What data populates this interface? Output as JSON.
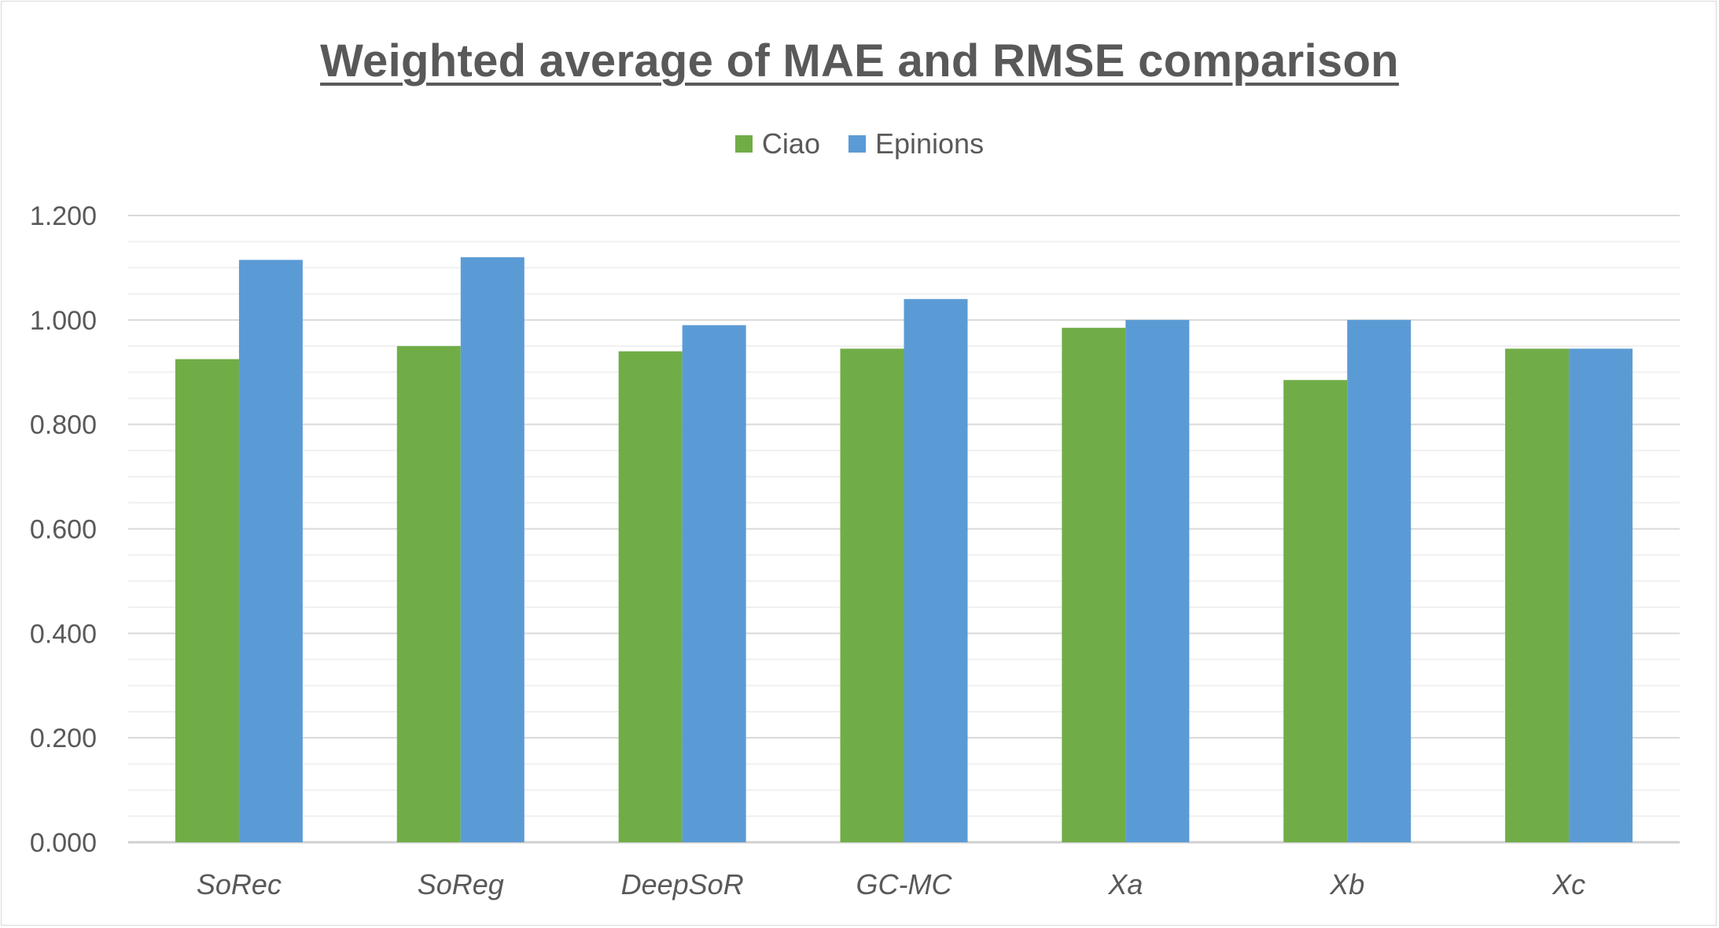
{
  "chart_data": {
    "type": "bar",
    "title": "Weighted average of MAE and RMSE comparison",
    "categories": [
      "SoRec",
      "SoReg",
      "DeepSoR",
      "GC-MC",
      "Xa",
      "Xb",
      "Xc"
    ],
    "series": [
      {
        "name": "Ciao",
        "color": "#70ad47",
        "values": [
          0.925,
          0.95,
          0.94,
          0.945,
          0.985,
          0.885,
          0.945
        ]
      },
      {
        "name": "Epinions",
        "color": "#5b9bd5",
        "values": [
          1.115,
          1.12,
          0.99,
          1.04,
          1.0,
          1.0,
          0.945
        ]
      }
    ],
    "ylim": [
      0,
      1.2
    ],
    "yticks": [
      "0.000",
      "0.200",
      "0.400",
      "0.600",
      "0.800",
      "1.000",
      "1.200"
    ],
    "legend": "top-center",
    "grid": true
  }
}
